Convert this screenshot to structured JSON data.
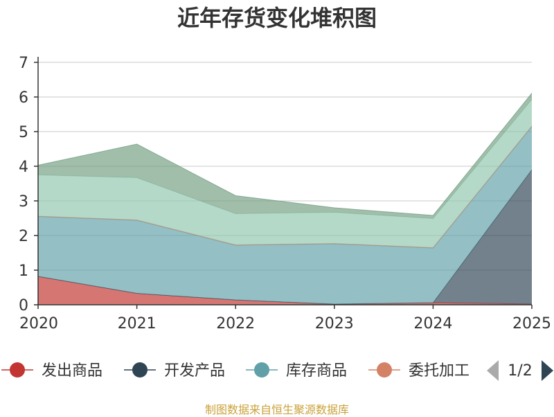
{
  "title": "近年存货变化堆积图",
  "source_note": "制图数据来自恒生聚源数据库",
  "legend": {
    "items": [
      "发出商品",
      "开发产品",
      "库存商品",
      "委托加工"
    ],
    "page": "1/2"
  },
  "chart_data": {
    "type": "area",
    "stacked": true,
    "title": "近年存货变化堆积图",
    "xlabel": "",
    "ylabel": "",
    "categories": [
      "2020",
      "2021",
      "2022",
      "2023",
      "2024",
      "2025"
    ],
    "ylim": [
      0,
      7
    ],
    "yticks": [
      0,
      1,
      2,
      3,
      4,
      5,
      6,
      7
    ],
    "grid": true,
    "series": [
      {
        "name": "发出商品",
        "color": "#c23531",
        "values": [
          0.82,
          0.33,
          0.14,
          0.02,
          0.06,
          0.02
        ]
      },
      {
        "name": "开发产品",
        "color": "#2f4554",
        "values": [
          0.0,
          0.0,
          0.0,
          0.0,
          0.0,
          3.88
        ]
      },
      {
        "name": "库存商品",
        "color": "#61a0a8",
        "values": [
          1.73,
          2.11,
          1.58,
          1.74,
          1.58,
          1.25
        ]
      },
      {
        "name": "委托加工",
        "color": "#d48265",
        "values": [
          0.01,
          0.01,
          0.01,
          0.01,
          0.01,
          0.01
        ]
      },
      {
        "color": "#91c7ae",
        "values": [
          1.19,
          1.22,
          0.9,
          0.9,
          0.84,
          0.77
        ]
      },
      {
        "color": "#749f83",
        "values": [
          0.28,
          0.97,
          0.52,
          0.13,
          0.09,
          0.18
        ]
      }
    ]
  }
}
